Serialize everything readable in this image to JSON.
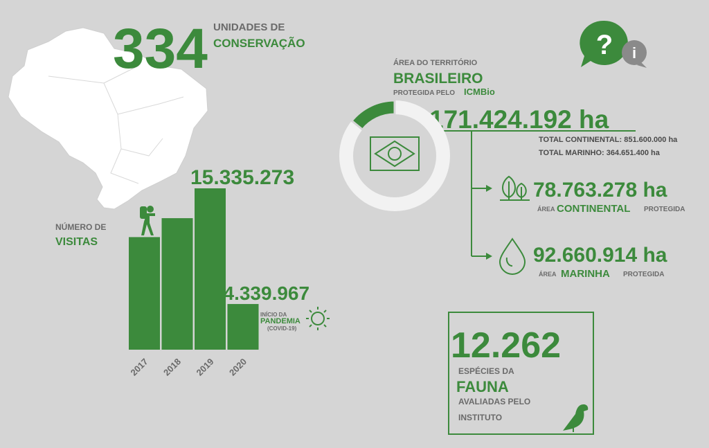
{
  "units": {
    "number": "334",
    "line1": "UNIDADES DE",
    "line2": "CONSERVAÇÃO"
  },
  "visits": {
    "line1": "NÚMERO DE",
    "line2": "VISITAS"
  },
  "chart_data": {
    "type": "bar",
    "categories": [
      "2017",
      "2018",
      "2019",
      "2020"
    ],
    "values": [
      10700000,
      12500000,
      15335273,
      4339967
    ],
    "value_labels": [
      null,
      null,
      "15.335.273",
      "4.339.967"
    ],
    "color": "#3c8a3c"
  },
  "pandemic": {
    "line1": "INÍCIO DA",
    "line2": "PANDEMIA",
    "line3": "(COVID-19)"
  },
  "territory": {
    "caption1": "ÁREA DO TERRITÓRIO",
    "title": "BRASILEIRO",
    "caption2": "PROTEGIDA PELO",
    "agency": "ICMBio",
    "protected": {
      "value": 171424192,
      "label": "171.424.192 ha"
    },
    "totals": [
      {
        "value": 851600000,
        "label": "TOTAL CONTINENTAL: 851.600.000 ha"
      },
      {
        "value": 364651400,
        "label": "TOTAL MARINHO: 364.651.400 ha"
      }
    ]
  },
  "continental": {
    "value": 78763278,
    "label": "78.763.278 ha",
    "pre": "ÁREA",
    "name": "CONTINENTAL",
    "post": "PROTEGIDA"
  },
  "marine": {
    "value": 92660914,
    "label": "92.660.914 ha",
    "pre": "ÁREA",
    "name": "MARINHA",
    "post": "PROTEGIDA"
  },
  "fauna": {
    "number": "12.262",
    "line1": "ESPÉCIES DA",
    "line2": "FAUNA",
    "line3": "AVALIADAS PELO",
    "line4": "INSTITUTO"
  }
}
